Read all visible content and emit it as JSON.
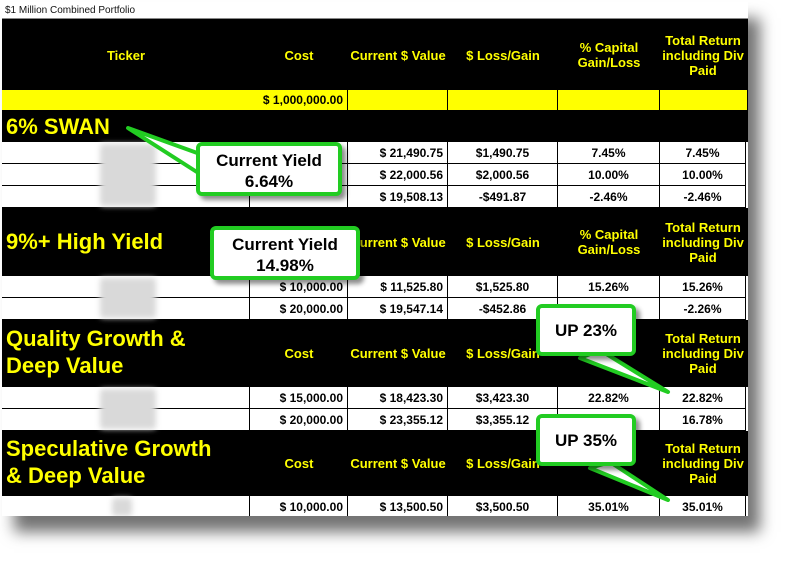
{
  "title": "$1 Million Combined Portfolio",
  "header": {
    "ticker": "Ticker",
    "cost": "Cost",
    "current_value": "Current $ Value",
    "loss_gain": "$ Loss/Gain",
    "pct_capital": "% Capital Gain/Loss",
    "total_return": "Total Return including Div Paid"
  },
  "total_row": {
    "cost": "$ 1,000,000.00"
  },
  "sections": [
    {
      "title": "6% SWAN",
      "rows": [
        {
          "cost": "",
          "current": "$ 21,490.75",
          "gain": "$1,490.75",
          "pct": "7.45%",
          "total": "7.45%"
        },
        {
          "cost": "",
          "current": "$ 22,000.56",
          "gain": "$2,000.56",
          "pct": "10.00%",
          "total": "10.00%"
        },
        {
          "cost": "",
          "current": "$ 19,508.13",
          "gain": "-$491.87",
          "pct": "-2.46%",
          "total": "-2.46%"
        }
      ]
    },
    {
      "title": "9%+ High Yield",
      "rows": [
        {
          "cost": "$ 10,000.00",
          "current": "$ 11,525.80",
          "gain": "$1,525.80",
          "pct": "15.26%",
          "total": "15.26%"
        },
        {
          "cost": "$ 20,000.00",
          "current": "$ 19,547.14",
          "gain": "-$452.86",
          "pct": "",
          "total": "-2.26%"
        }
      ]
    },
    {
      "title_line1": "Quality Growth &",
      "title_line2": "Deep Value",
      "rows": [
        {
          "cost": "$ 15,000.00",
          "current": "$ 18,423.30",
          "gain": "$3,423.30",
          "pct": "22.82%",
          "total": "22.82%"
        },
        {
          "cost": "$ 20,000.00",
          "current": "$ 23,355.12",
          "gain": "$3,355.12",
          "pct": "",
          "total": "16.78%"
        }
      ]
    },
    {
      "title_line1": "Speculative Growth",
      "title_line2": "& Deep Value",
      "rows": [
        {
          "cost": "$ 10,000.00",
          "current": "$ 13,500.50",
          "gain": "$3,500.50",
          "pct": "35.01%",
          "total": "35.01%"
        }
      ]
    }
  ],
  "callouts": {
    "yield1_label": "Current Yield",
    "yield1_value": "6.64%",
    "yield2_label": "Current Yield",
    "yield2_value": "14.98%",
    "up1": "UP 23%",
    "up2": "UP 35%"
  },
  "colors": {
    "header_text": "#ffff00",
    "callout_border": "#22cc22",
    "background": "#000000"
  }
}
